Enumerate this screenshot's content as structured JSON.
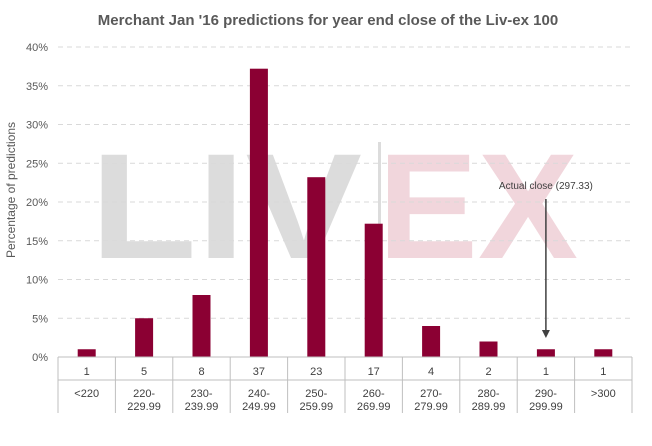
{
  "chart_data": {
    "type": "bar",
    "title": "Merchant Jan '16 predictions for year end close of the Liv-ex 100",
    "ylabel": "Percentage of predictions",
    "xlabel": "",
    "ylim": [
      0,
      40
    ],
    "ytick_labels": [
      "0%",
      "5%",
      "10%",
      "15%",
      "20%",
      "25%",
      "30%",
      "35%",
      "40%"
    ],
    "ytick_values": [
      0,
      5,
      10,
      15,
      20,
      25,
      30,
      35,
      40
    ],
    "grid": "horizontal-dashed",
    "categories": [
      [
        "<220"
      ],
      [
        "220-",
        "229.99"
      ],
      [
        "230-",
        "239.99"
      ],
      [
        "240-",
        "249.99"
      ],
      [
        "250-",
        "259.99"
      ],
      [
        "260-",
        "269.99"
      ],
      [
        "270-",
        "279.99"
      ],
      [
        "280-",
        "289.99"
      ],
      [
        "290-",
        "299.99"
      ],
      [
        ">300"
      ]
    ],
    "counts": [
      "1",
      "5",
      "8",
      "37",
      "23",
      "17",
      "4",
      "2",
      "1",
      "1"
    ],
    "values": [
      1,
      5,
      8,
      37.2,
      23.2,
      17.2,
      4,
      2,
      1,
      1
    ],
    "bar_color": "#8b0033",
    "annotation": {
      "text": "Actual close (297.33)",
      "category_index": 8
    },
    "watermark": {
      "left": "LIV",
      "right": "EX",
      "left_color": "#dcdcdc",
      "right_color": "#f1d6dc"
    }
  }
}
